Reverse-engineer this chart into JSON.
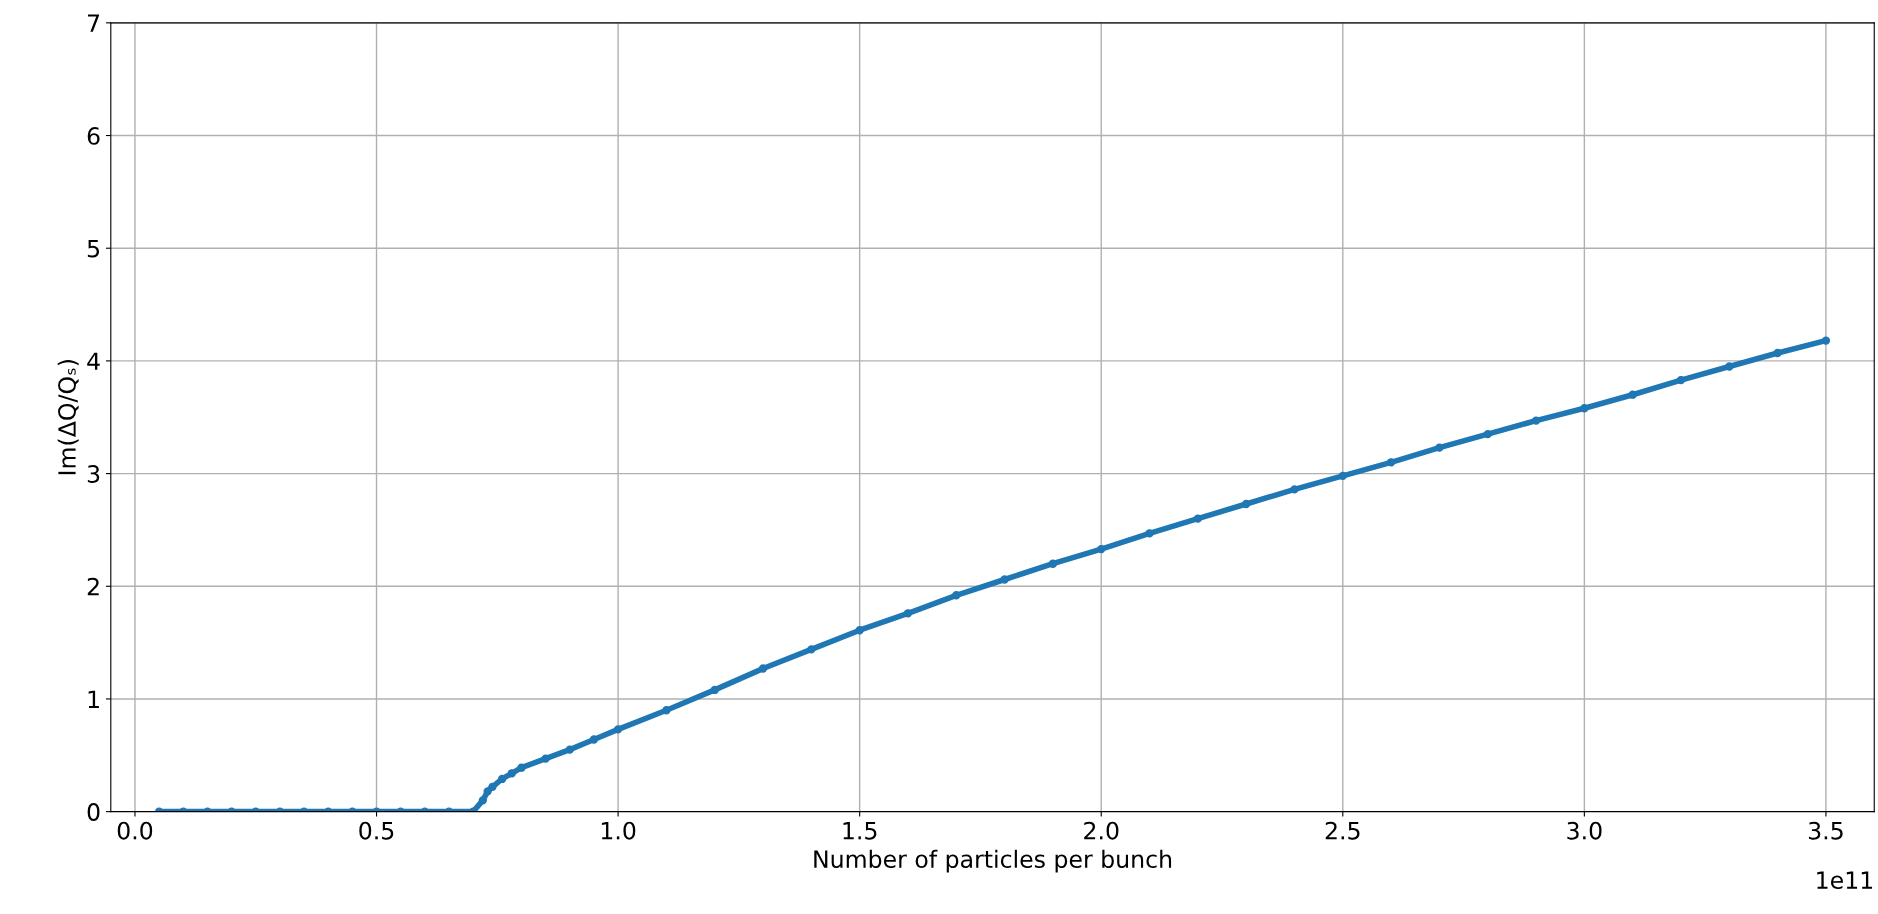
{
  "chart_data": {
    "type": "line",
    "xlabel": "Number of particles per bunch",
    "ylabel": "Im(ΔQ/Qₛ)",
    "annotations": [
      "1e11"
    ],
    "series": [
      {
        "color": "#1f77b4",
        "x": [
          0.05,
          0.1,
          0.15,
          0.2,
          0.25,
          0.3,
          0.35,
          0.4,
          0.45,
          0.5,
          0.55,
          0.6,
          0.65,
          0.7,
          0.72,
          0.73,
          0.74,
          0.76,
          0.78,
          0.8,
          0.85,
          0.9,
          0.95,
          1.0,
          1.1,
          1.2,
          1.3,
          1.4,
          1.5,
          1.6,
          1.7,
          1.8,
          1.9,
          2.0,
          2.1,
          2.2,
          2.3,
          2.4,
          2.5,
          2.6,
          2.7,
          2.8,
          2.9,
          3.0,
          3.1,
          3.2,
          3.3,
          3.4,
          3.5
        ],
        "values": [
          0,
          0,
          0,
          0,
          0,
          0,
          0,
          0,
          0,
          0,
          0,
          0,
          0,
          0,
          0.1,
          0.18,
          0.22,
          0.29,
          0.34,
          0.39,
          0.47,
          0.55,
          0.64,
          0.73,
          0.9,
          1.08,
          1.27,
          1.44,
          1.61,
          1.76,
          1.92,
          2.06,
          2.2,
          2.33,
          2.47,
          2.6,
          2.73,
          2.86,
          2.98,
          3.1,
          3.23,
          3.35,
          3.47,
          3.58,
          3.7,
          3.83,
          3.95,
          4.07,
          4.18
        ]
      }
    ],
    "marker": "circle",
    "line_style": "solid",
    "xlim": [
      -0.05,
      3.6
    ],
    "xticks": [
      {
        "value": 0,
        "label": "0.0"
      },
      {
        "value": 0.5,
        "label": "0.5"
      },
      {
        "value": 1,
        "label": "1.0"
      },
      {
        "value": 1.5,
        "label": "1.5"
      },
      {
        "value": 2,
        "label": "2.0"
      },
      {
        "value": 2.5,
        "label": "2.5"
      },
      {
        "value": 3,
        "label": "3.0"
      },
      {
        "value": 3.5,
        "label": "3.5"
      }
    ],
    "ylim": [
      0,
      7
    ],
    "yticks": [
      0,
      1,
      2,
      3,
      4,
      5,
      6,
      7
    ],
    "grid": true
  }
}
